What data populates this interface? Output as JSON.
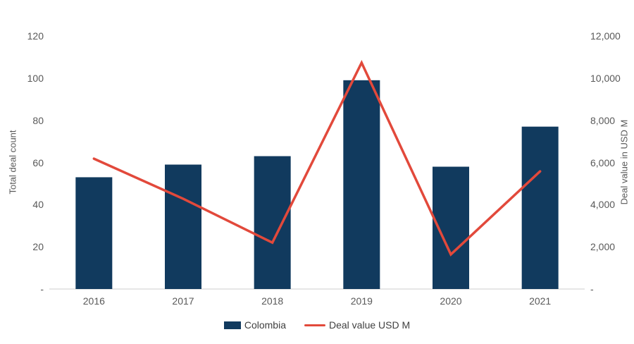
{
  "chart_data": {
    "type": "bar",
    "subtype": "combo-bar-line-dual-axis",
    "title": "",
    "categories": [
      "2016",
      "2017",
      "2018",
      "2019",
      "2020",
      "2021"
    ],
    "series": [
      {
        "name": "Colombia",
        "type": "bar",
        "axis": "left",
        "values": [
          53,
          59,
          63,
          99,
          58,
          77
        ]
      },
      {
        "name": "Deal value USD M",
        "type": "line",
        "axis": "right",
        "values": [
          6180,
          4280,
          2200,
          10730,
          1640,
          5580
        ]
      }
    ],
    "left_axis": {
      "title": "Total deal count",
      "min": 0,
      "max": 120,
      "tick_step": 20,
      "tick_labels": [
        "120",
        "100",
        "80",
        "60",
        "40",
        "20",
        "-"
      ]
    },
    "right_axis": {
      "title": "Deal value in USD M",
      "min": 0,
      "max": 12000,
      "tick_step": 2000,
      "tick_labels": [
        "12,000",
        "10,000",
        "8,000",
        "6,000",
        "4,000",
        "2,000",
        "-"
      ]
    },
    "grid": false,
    "legend_position": "bottom"
  },
  "colors": {
    "bar": "#113A5E",
    "line": "#E2493B",
    "axis_text": "#595959",
    "baseline": "#E6E6E6"
  }
}
